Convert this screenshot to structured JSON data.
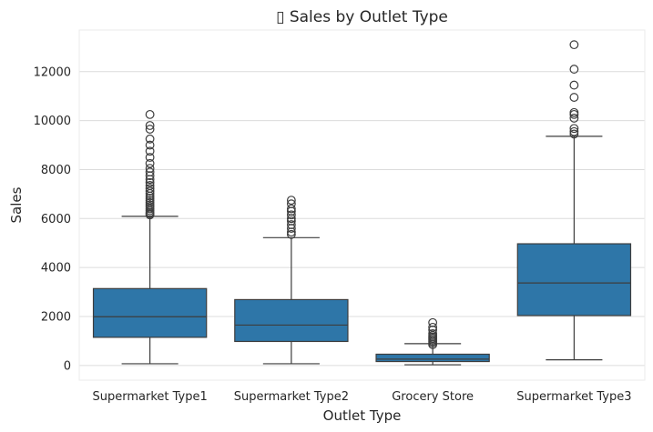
{
  "chart_data": {
    "type": "box",
    "title": "▯ Sales by Outlet Type",
    "xlabel": "Outlet Type",
    "ylabel": "Sales",
    "ylim": [
      -600,
      13700
    ],
    "yticks": [
      0,
      2000,
      4000,
      6000,
      8000,
      10000,
      12000
    ],
    "grid": "horizontal",
    "box_color": "#2e76a8",
    "categories": [
      "Supermarket Type1",
      "Supermarket Type2",
      "Grocery Store",
      "Supermarket Type3"
    ],
    "boxes": [
      {
        "category": "Supermarket Type1",
        "whisker_low": 70,
        "q1": 1150,
        "median": 1990,
        "q3": 3140,
        "whisker_high": 6090,
        "outliers": [
          6150,
          6200,
          6250,
          6320,
          6400,
          6480,
          6560,
          6650,
          6740,
          6830,
          6920,
          7020,
          7120,
          7230,
          7350,
          7470,
          7600,
          7750,
          7900,
          8050,
          8250,
          8500,
          8750,
          9000,
          9250,
          9650,
          9800,
          10250
        ]
      },
      {
        "category": "Supermarket Type2",
        "whisker_low": 70,
        "q1": 980,
        "median": 1650,
        "q3": 2690,
        "whisker_high": 5220,
        "outliers": [
          5350,
          5450,
          5600,
          5750,
          5900,
          6000,
          6150,
          6300,
          6400,
          6600,
          6750
        ]
      },
      {
        "category": "Grocery Store",
        "whisker_low": 30,
        "q1": 160,
        "median": 260,
        "q3": 460,
        "whisker_high": 890,
        "outliers": [
          850,
          920,
          980,
          1040,
          1100,
          1160,
          1220,
          1300,
          1450,
          1560,
          1750
        ]
      },
      {
        "category": "Supermarket Type3",
        "whisker_low": 230,
        "q1": 2040,
        "median": 3370,
        "q3": 4970,
        "whisker_high": 9360,
        "outliers": [
          9450,
          9550,
          9680,
          10100,
          10250,
          10330,
          10950,
          11450,
          12100,
          13100
        ]
      }
    ]
  }
}
